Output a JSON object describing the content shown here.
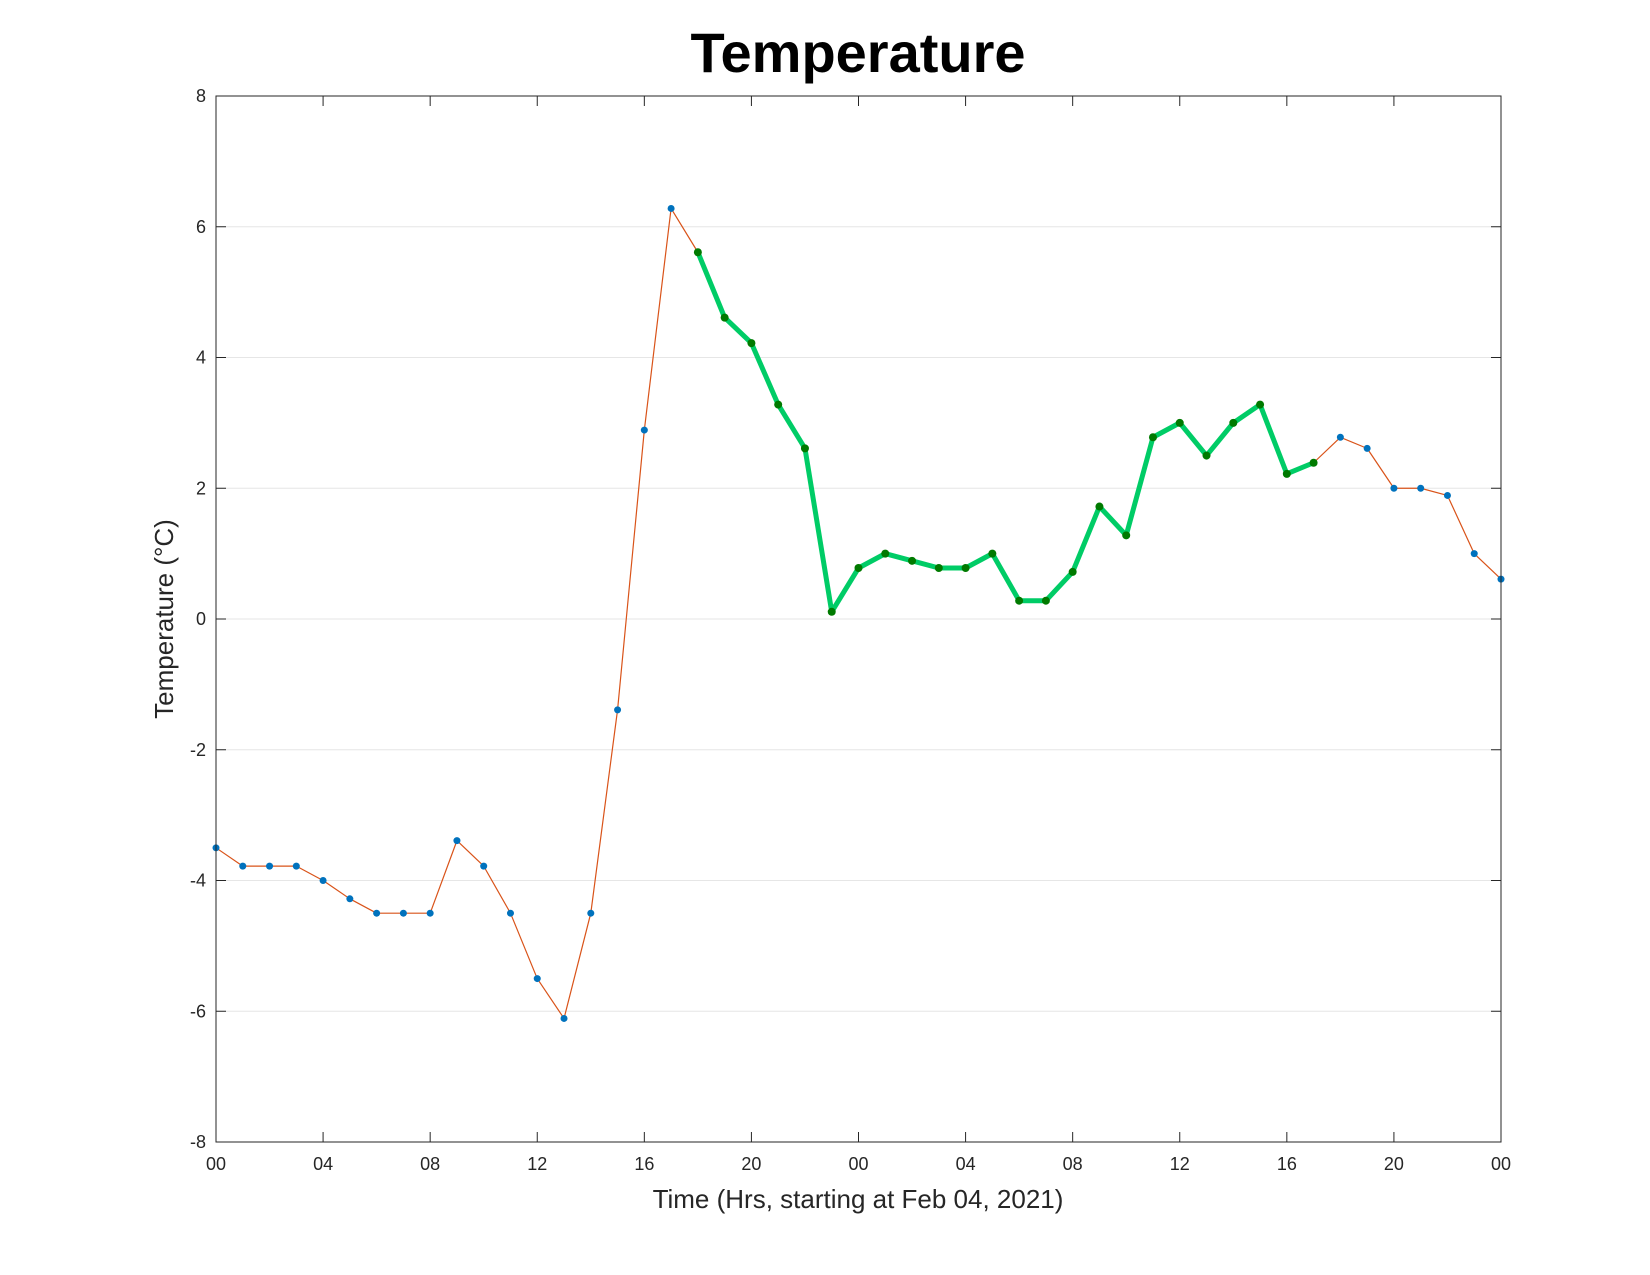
{
  "chart_data": {
    "type": "line",
    "title": "Temperature",
    "xlabel": "Time (Hrs, starting at Feb 04, 2021)",
    "ylabel": "Temperature (°C)",
    "ylim": [
      -8,
      8
    ],
    "xlim_hours": [
      0,
      48
    ],
    "y_ticks": [
      "8",
      "6",
      "4",
      "2",
      "0",
      "-2",
      "-4",
      "-6",
      "-8"
    ],
    "x_ticks": [
      "00",
      "04",
      "08",
      "12",
      "16",
      "20",
      "00",
      "04",
      "08",
      "12",
      "16",
      "20",
      "00"
    ],
    "grid": "horizontal",
    "x_hours": [
      0,
      1,
      2,
      3,
      4,
      5,
      6,
      7,
      8,
      9,
      10,
      11,
      12,
      13,
      14,
      15,
      16,
      17,
      18,
      19,
      20,
      21,
      22,
      23,
      24,
      25,
      26,
      27,
      28,
      29,
      30,
      31,
      32,
      33,
      34,
      35,
      36,
      37,
      38,
      39,
      40,
      41,
      42,
      43,
      44,
      45,
      46,
      47,
      48
    ],
    "series": [
      {
        "color": "#D95319",
        "marker_color": "#0072BD",
        "values": [
          -3.5,
          -3.78,
          -3.78,
          -3.78,
          -4.0,
          -4.28,
          -4.5,
          -4.5,
          -4.5,
          -3.39,
          -3.78,
          -4.5,
          -5.5,
          -6.11,
          -4.5,
          -1.39,
          2.89,
          6.28,
          5.61,
          4.61,
          4.22,
          3.28,
          2.61,
          0.11,
          0.78,
          1.0,
          0.89,
          0.78,
          0.78,
          1.0,
          0.28,
          0.28,
          0.72,
          1.72,
          1.28,
          2.78,
          3.0,
          2.5,
          3.0,
          3.28,
          2.22,
          2.39,
          2.78,
          2.61,
          2.0,
          2.0,
          1.89,
          1.0,
          0.61
        ]
      },
      {
        "color": "#00CC66",
        "marker_color": "#007A00",
        "x_hours": [
          18,
          19,
          20,
          21,
          22,
          23,
          24,
          25,
          26,
          27,
          28,
          29,
          30,
          31,
          32,
          33,
          34,
          35,
          36,
          37,
          38,
          39,
          40,
          41
        ],
        "values": [
          5.61,
          4.61,
          4.22,
          3.28,
          2.61,
          0.11,
          0.78,
          1.0,
          0.89,
          0.78,
          0.78,
          1.0,
          0.28,
          0.28,
          0.72,
          1.72,
          1.28,
          2.78,
          3.0,
          2.5,
          3.0,
          3.28,
          2.22,
          2.39
        ]
      }
    ]
  }
}
